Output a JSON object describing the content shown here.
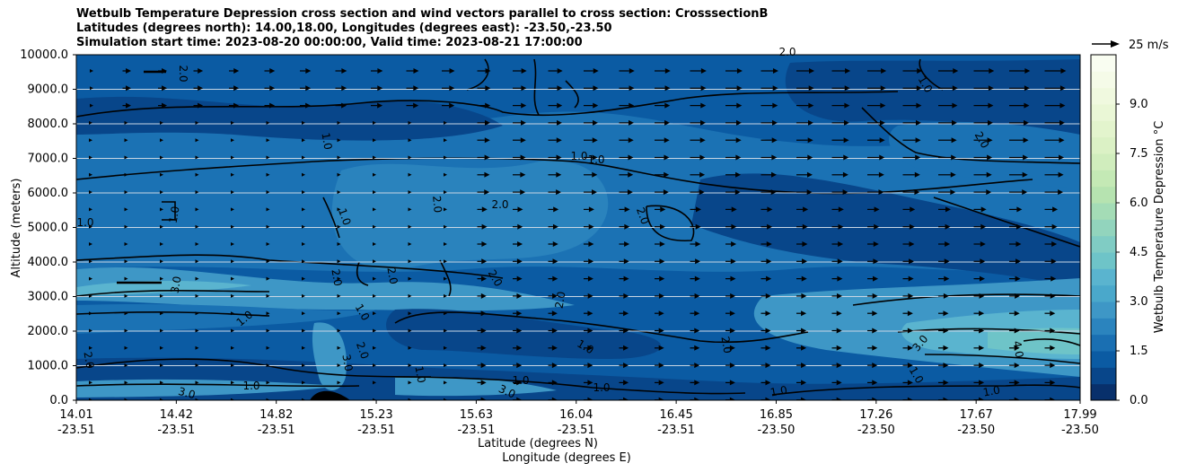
{
  "chart_data": {
    "type": "heatmap",
    "title_lines": [
      "Wetbulb Temperature Depression cross section and wind vectors parallel to cross section: CrosssectionB",
      "Latitudes (degrees north): 14.00,18.00, Longitudes (degrees east): -23.50,-23.50",
      "Simulation start time: 2023-08-20 00:00:00, Valid time: 2023-08-21 17:00:00"
    ],
    "ylabel": "Altitude (meters)",
    "xlabel_lat": "Latitude (degrees N)",
    "xlabel_lon": "Longitude (degrees E)",
    "ylim": [
      0,
      10000
    ],
    "yticks": [
      "0.0",
      "1000.0",
      "2000.0",
      "3000.0",
      "4000.0",
      "5000.0",
      "6000.0",
      "7000.0",
      "8000.0",
      "9000.0",
      "10000.0"
    ],
    "xticks": [
      {
        "lat": "14.01",
        "lon": "-23.51"
      },
      {
        "lat": "14.42",
        "lon": "-23.51"
      },
      {
        "lat": "14.82",
        "lon": "-23.51"
      },
      {
        "lat": "15.23",
        "lon": "-23.51"
      },
      {
        "lat": "15.63",
        "lon": "-23.51"
      },
      {
        "lat": "16.04",
        "lon": "-23.51"
      },
      {
        "lat": "16.45",
        "lon": "-23.51"
      },
      {
        "lat": "16.85",
        "lon": "-23.50"
      },
      {
        "lat": "17.26",
        "lon": "-23.50"
      },
      {
        "lat": "17.67",
        "lon": "-23.50"
      },
      {
        "lat": "17.99",
        "lon": "-23.50"
      }
    ],
    "colorbar": {
      "label": "Wetbulb Temperature Depression °C",
      "range": [
        0,
        10.5
      ],
      "ticks": [
        "0.0",
        "1.5",
        "3.0",
        "4.5",
        "6.0",
        "7.5",
        "9.0"
      ],
      "levels": 21
    },
    "wind_key": "25 m/s",
    "contour_labels": [
      "1.0",
      "2.0",
      "3.0",
      "4.0"
    ],
    "colors": {
      "darkest": "#08468a",
      "dark": "#0b5ba3",
      "mid": "#1b72b4",
      "light": "#3e97c6",
      "lighter": "#5ab4cf",
      "teal": "#6ec4c8"
    }
  }
}
